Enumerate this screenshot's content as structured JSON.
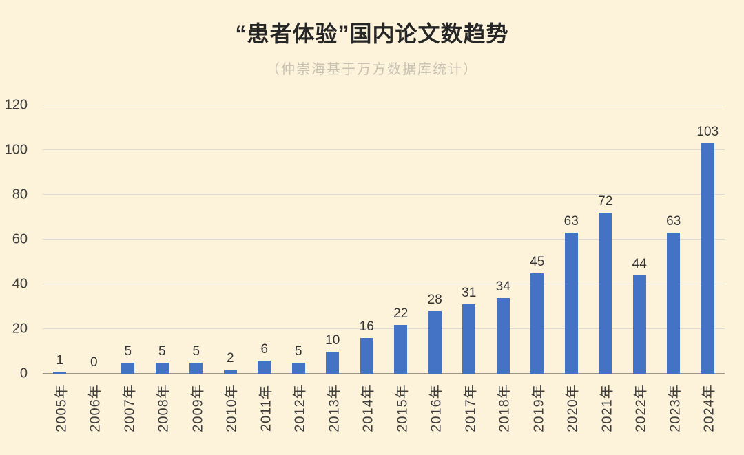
{
  "page": {
    "background": "#fdf3da"
  },
  "chart_data": {
    "type": "bar",
    "title": "“患者体验”国内论文数趋势",
    "subtitle": "（仲崇海基于万方数据库统计）",
    "categories": [
      "2005年",
      "2006年",
      "2007年",
      "2008年",
      "2009年",
      "2010年",
      "2011年",
      "2012年",
      "2013年",
      "2014年",
      "2015年",
      "2016年",
      "2017年",
      "2018年",
      "2019年",
      "2020年",
      "2021年",
      "2022年",
      "2023年",
      "2024年"
    ],
    "values": [
      1,
      0,
      5,
      5,
      5,
      2,
      6,
      5,
      10,
      16,
      22,
      28,
      31,
      34,
      45,
      63,
      72,
      44,
      63,
      103
    ],
    "ylim": [
      0,
      120
    ],
    "yticks": [
      0,
      20,
      40,
      60,
      80,
      100,
      120
    ],
    "grid": true,
    "legend": "none",
    "xlabel": "",
    "ylabel": "",
    "bar_color": "#4472c4",
    "value_label_color": "#333333",
    "axis_label_color": "#3f3f3f",
    "grid_color": "#d9d9d9",
    "background_color": "#fdf3da"
  }
}
